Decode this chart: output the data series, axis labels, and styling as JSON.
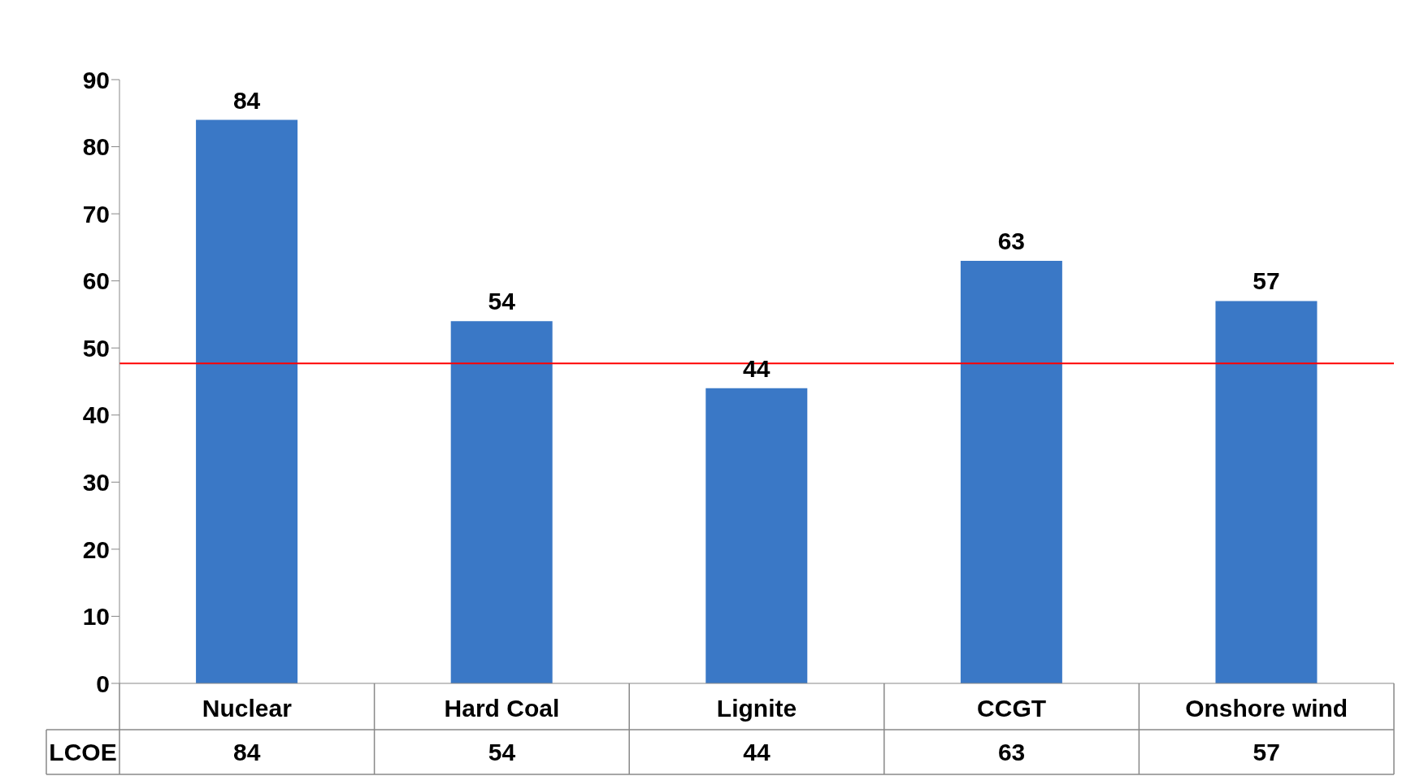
{
  "chart_data": {
    "type": "bar",
    "categories": [
      "Nuclear",
      "Hard Coal",
      "Lignite",
      "CCGT",
      "Onshore wind"
    ],
    "series": [
      {
        "name": "LCOE",
        "color": "#3a78c6",
        "values": [
          84,
          54,
          44,
          63,
          57
        ],
        "value_labels": [
          "84",
          "54",
          "44",
          "63",
          "57"
        ]
      }
    ],
    "ylim": [
      0,
      90
    ],
    "yticks": [
      0,
      10,
      20,
      30,
      40,
      50,
      60,
      70,
      80,
      90
    ],
    "grid": false,
    "legend": false,
    "ref_lines": [
      {
        "axis": "y",
        "value": 47.7,
        "color": "#ff0000"
      }
    ],
    "annotations": [
      "84",
      "54",
      "44",
      "63",
      "57"
    ]
  }
}
